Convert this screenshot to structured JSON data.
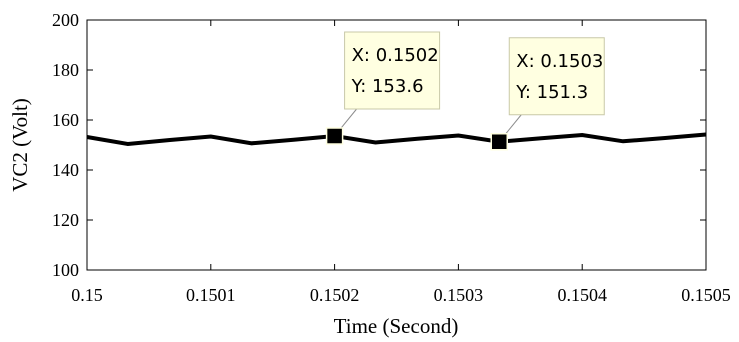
{
  "chart_data": {
    "type": "line",
    "xlabel": "Time (Second)",
    "ylabel": "VC2 (Volt)",
    "xlim": [
      0.15,
      0.1505
    ],
    "ylim": [
      100,
      200
    ],
    "x_tick_labels": [
      "0.15",
      "0.1501",
      "0.1502",
      "0.1503",
      "0.1504",
      "0.1505"
    ],
    "y_tick_labels": [
      "100",
      "120",
      "140",
      "160",
      "180",
      "200"
    ],
    "grid": false,
    "series": [
      {
        "color": "#000000",
        "x": [
          0.15,
          0.150033,
          0.150067,
          0.1501,
          0.150133,
          0.150167,
          0.1502,
          0.150233,
          0.150267,
          0.1503,
          0.150333,
          0.150367,
          0.1504,
          0.150433,
          0.150467,
          0.1505
        ],
        "y": [
          153.2,
          150.4,
          152.0,
          153.4,
          150.7,
          152.1,
          153.6,
          151.0,
          152.5,
          153.8,
          151.3,
          152.7,
          154.0,
          151.5,
          152.8,
          154.2
        ]
      }
    ],
    "datatips": [
      {
        "x": 0.1502,
        "y": 153.6,
        "label_x": "X: 0.1502",
        "label_y": "Y: 153.6"
      },
      {
        "x": 0.150333,
        "y": 151.3,
        "label_x": "X: 0.1503",
        "label_y": "Y: 151.3"
      }
    ]
  }
}
